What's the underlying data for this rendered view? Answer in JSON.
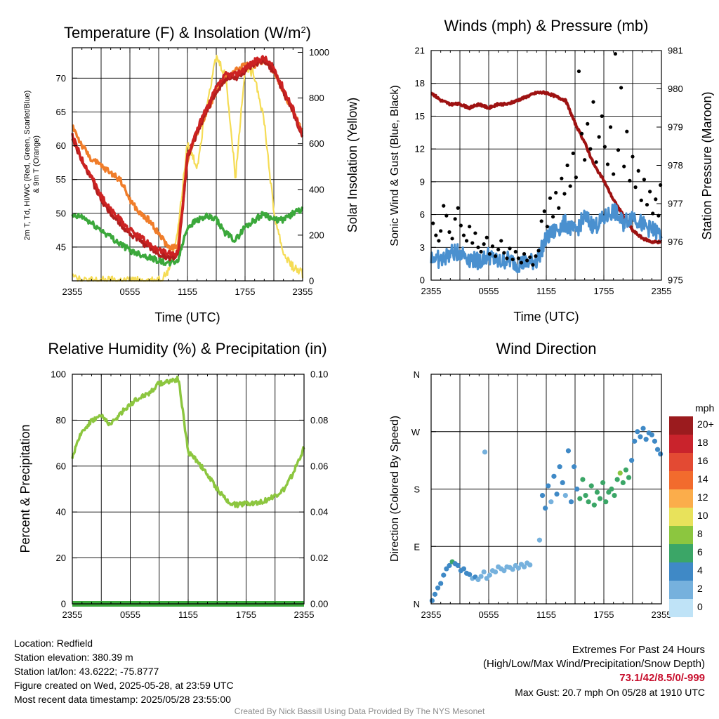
{
  "colors": {
    "temp_2m": "#cc2222",
    "dewpoint": "#3ba83b",
    "heat_index": "#b01d1d",
    "temp_9m": "#f07d2a",
    "insolation": "#f5dc55",
    "wind_speed": "#4a90cf",
    "wind_gust": "#000000",
    "pressure": "#9e1212",
    "rh": "#8cc63f",
    "precip": "#3ba83b"
  },
  "chart_data": [
    {
      "id": "temperature",
      "type": "line",
      "title": "Temperature (F) & Insolation (W/m²)",
      "xlabel": "Time (UTC)",
      "ylabel": "2m T, Td, HI/WC (Red, Green, Scarlet/Blue) & 9m T (Orange)",
      "ylabel_lines": [
        "2m T, Td, HI/WC (Red, Green, Scarlet/Blue)",
        "& 9m T (Orange)"
      ],
      "y2label": "Solar Insolation (Yellow)",
      "x_ticks": [
        "2355",
        "0555",
        "1155",
        "1755",
        "2355"
      ],
      "ylim": [
        40,
        74.5
      ],
      "y_ticks": [
        45,
        50,
        55,
        60,
        65,
        70
      ],
      "y2lim": [
        0,
        1020
      ],
      "y2_ticks": [
        0,
        200,
        400,
        600,
        800,
        1000
      ],
      "x_hours": [
        0,
        1,
        2,
        3,
        4,
        5,
        6,
        7,
        8,
        9,
        10,
        11,
        12,
        13,
        14,
        15,
        16,
        17,
        18,
        19,
        20,
        21,
        22,
        23,
        24
      ],
      "series": [
        {
          "axis": "y2",
          "color": "insolation",
          "values": [
            40,
            0,
            0,
            0,
            0,
            0,
            0,
            0,
            0,
            5,
            40,
            220,
            600,
            500,
            780,
            980,
            900,
            450,
            940,
            900,
            700,
            300,
            120,
            60,
            30
          ]
        },
        {
          "axis": "y",
          "color": "dewpoint",
          "values": [
            49.5,
            49.5,
            48.5,
            47.5,
            46.5,
            45.5,
            44.5,
            44,
            43.5,
            43,
            42.5,
            43,
            48,
            49,
            49.5,
            49,
            47,
            46,
            48,
            49,
            50,
            49,
            49,
            50,
            50.5
          ]
        },
        {
          "axis": "y",
          "color": "temp_9m",
          "values": [
            63,
            60,
            58,
            57,
            56,
            55,
            52,
            50,
            49,
            47,
            45,
            45,
            58,
            62,
            65,
            68,
            70,
            71,
            72,
            72,
            72.5,
            71,
            68,
            65,
            62
          ]
        },
        {
          "axis": "y",
          "color": "heat_index",
          "values": [
            61,
            58,
            55,
            52,
            50,
            48.5,
            47,
            46,
            45,
            44,
            43.5,
            43.5,
            58,
            62,
            65,
            68,
            70,
            70,
            71,
            72,
            72.5,
            71,
            68,
            65,
            61
          ]
        },
        {
          "axis": "y",
          "color": "temp_2m",
          "values": [
            61.5,
            58,
            55.5,
            52.5,
            50.5,
            49,
            47.5,
            46.5,
            45.5,
            44.5,
            44,
            44,
            58.5,
            62.5,
            65.5,
            68.5,
            70.5,
            70.5,
            71.5,
            72.5,
            73,
            71.5,
            68.5,
            65.5,
            61.5
          ]
        }
      ]
    },
    {
      "id": "winds",
      "type": "line",
      "title": "Winds (mph) & Pressure (mb)",
      "xlabel": "Time (UTC)",
      "ylabel": "Sonic Wind & Gust (Blue, Black)",
      "y2label": "Station Pressure (Maroon)",
      "x_ticks": [
        "2355",
        "0555",
        "1155",
        "1755",
        "2355"
      ],
      "ylim": [
        0,
        21
      ],
      "y_ticks": [
        0,
        3,
        6,
        9,
        12,
        15,
        18,
        21
      ],
      "y2lim": [
        975,
        981
      ],
      "y2_ticks": [
        975,
        976,
        977,
        978,
        979,
        980,
        981
      ],
      "x_hours": [
        0,
        1,
        2,
        3,
        4,
        5,
        6,
        7,
        8,
        9,
        10,
        11,
        12,
        13,
        14,
        15,
        16,
        17,
        18,
        19,
        20,
        21,
        22,
        23,
        24
      ],
      "series": [
        {
          "axis": "y2",
          "color": "pressure",
          "values": [
            979.9,
            979.7,
            979.6,
            979.6,
            979.5,
            979.6,
            979.5,
            979.6,
            979.6,
            979.7,
            979.8,
            979.9,
            979.9,
            979.8,
            979.7,
            979.1,
            978.6,
            978.0,
            977.6,
            977.1,
            976.7,
            976.3,
            976.1,
            976.0,
            976.0
          ]
        },
        {
          "axis": "y",
          "color": "wind_speed",
          "values": [
            2.2,
            1.8,
            2.4,
            2.6,
            2.0,
            1.7,
            2.3,
            1.6,
            1.9,
            1.5,
            1.6,
            1.8,
            3.8,
            4.6,
            5.2,
            4.4,
            5.8,
            4.9,
            5.6,
            6.4,
            5.2,
            6.0,
            5.1,
            4.6,
            4.2
          ]
        }
      ],
      "gust_points": [
        [
          0.2,
          5.2
        ],
        [
          0.5,
          4.1
        ],
        [
          0.8,
          3.6
        ],
        [
          1.0,
          4.5
        ],
        [
          1.3,
          6.8
        ],
        [
          1.6,
          5.9
        ],
        [
          1.9,
          4.4
        ],
        [
          2.2,
          3.8
        ],
        [
          2.5,
          5.6
        ],
        [
          2.8,
          6.6
        ],
        [
          3.1,
          5.0
        ],
        [
          3.4,
          4.1
        ],
        [
          3.7,
          3.6
        ],
        [
          4.0,
          4.9
        ],
        [
          4.3,
          3.4
        ],
        [
          4.6,
          4.3
        ],
        [
          4.9,
          3.0
        ],
        [
          5.2,
          2.6
        ],
        [
          5.5,
          3.3
        ],
        [
          5.8,
          3.9
        ],
        [
          6.1,
          2.4
        ],
        [
          6.4,
          3.1
        ],
        [
          6.7,
          2.2
        ],
        [
          7.0,
          2.8
        ],
        [
          7.3,
          3.6
        ],
        [
          7.6,
          2.5
        ],
        [
          7.9,
          2.0
        ],
        [
          8.2,
          2.9
        ],
        [
          8.5,
          1.9
        ],
        [
          8.8,
          2.6
        ],
        [
          9.1,
          2.0
        ],
        [
          9.4,
          1.6
        ],
        [
          9.7,
          2.4
        ],
        [
          10.0,
          1.8
        ],
        [
          10.3,
          2.1
        ],
        [
          10.6,
          1.4
        ],
        [
          10.9,
          2.2
        ],
        [
          11.2,
          2.7
        ],
        [
          11.5,
          5.4
        ],
        [
          11.8,
          6.3
        ],
        [
          12.1,
          4.9
        ],
        [
          12.4,
          7.5
        ],
        [
          12.7,
          5.8
        ],
        [
          13.0,
          8.0
        ],
        [
          13.3,
          6.6
        ],
        [
          13.6,
          9.3
        ],
        [
          13.9,
          7.9
        ],
        [
          14.2,
          10.5
        ],
        [
          14.5,
          8.6
        ],
        [
          14.8,
          11.6
        ],
        [
          15.1,
          9.4
        ],
        [
          15.4,
          19.1
        ],
        [
          15.7,
          13.4
        ],
        [
          16.0,
          11.0
        ],
        [
          16.3,
          14.3
        ],
        [
          16.6,
          12.0
        ],
        [
          16.9,
          16.3
        ],
        [
          17.2,
          10.8
        ],
        [
          17.5,
          13.1
        ],
        [
          17.8,
          15.0
        ],
        [
          18.1,
          12.2
        ],
        [
          18.4,
          10.6
        ],
        [
          18.7,
          14.0
        ],
        [
          19.0,
          9.7
        ],
        [
          19.2,
          20.7
        ],
        [
          19.5,
          11.9
        ],
        [
          19.8,
          17.6
        ],
        [
          20.1,
          10.4
        ],
        [
          20.4,
          13.6
        ],
        [
          20.7,
          9.1
        ],
        [
          21.0,
          11.3
        ],
        [
          21.3,
          8.5
        ],
        [
          21.6,
          10.0
        ],
        [
          21.9,
          7.3
        ],
        [
          22.2,
          9.2
        ],
        [
          22.5,
          6.9
        ],
        [
          22.8,
          8.1
        ],
        [
          23.1,
          6.1
        ],
        [
          23.4,
          7.4
        ],
        [
          23.7,
          5.9
        ],
        [
          23.9,
          8.7
        ]
      ]
    },
    {
      "id": "humidity",
      "type": "line",
      "title": "Relative Humidity (%) & Precipitation (in)",
      "xlabel": "",
      "ylabel": "Percent & Precipitation",
      "x_ticks": [
        "2355",
        "0555",
        "1155",
        "1755",
        "2355"
      ],
      "ylim": [
        0,
        100
      ],
      "y_ticks": [
        0,
        20,
        40,
        60,
        80,
        100
      ],
      "y2lim": [
        0,
        0.1
      ],
      "y2_ticks": [
        "0.00",
        "0.02",
        "0.04",
        "0.06",
        "0.08",
        "0.10"
      ],
      "x_hours": [
        0,
        1,
        2,
        3,
        4,
        5,
        6,
        7,
        8,
        9,
        10,
        11,
        12,
        13,
        14,
        15,
        16,
        17,
        18,
        19,
        20,
        21,
        22,
        23,
        24
      ],
      "series": [
        {
          "axis": "y",
          "color": "rh",
          "values": [
            64,
            75,
            80,
            82,
            78,
            83,
            87,
            90,
            92,
            96,
            97,
            98,
            66,
            62,
            56,
            50,
            45,
            43,
            44,
            44,
            45,
            47,
            50,
            58,
            68
          ]
        },
        {
          "axis": "y2",
          "color": "precip",
          "values": [
            0,
            0,
            0,
            0,
            0,
            0,
            0,
            0,
            0,
            0,
            0,
            0,
            0,
            0,
            0,
            0,
            0,
            0,
            0,
            0,
            0,
            0,
            0,
            0,
            0
          ]
        }
      ]
    },
    {
      "id": "direction",
      "type": "scatter",
      "title": "Wind Direction",
      "ylabel": "Direction (Colored By Speed)",
      "x_ticks": [
        "2355",
        "0555",
        "1155",
        "1755",
        "2355"
      ],
      "y_ticks": [
        "N",
        "E",
        "S",
        "W",
        "N"
      ],
      "ylim": [
        0,
        360
      ],
      "legend_title": "mph",
      "legend_labels": [
        "20+",
        "18",
        "16",
        "14",
        "12",
        "10",
        "8",
        "6",
        "4",
        "2",
        "0"
      ],
      "legend_colors": [
        "#9b1b1e",
        "#c9232c",
        "#e34a33",
        "#f26b2d",
        "#fbad4b",
        "#e8e25b",
        "#8cc63f",
        "#3ba667",
        "#3f89c6",
        "#76b1dd",
        "#bfe3f7"
      ],
      "points": [
        [
          0.1,
          5,
          4
        ],
        [
          0.4,
          15,
          4
        ],
        [
          0.7,
          25,
          3
        ],
        [
          1.0,
          32,
          3
        ],
        [
          1.3,
          45,
          4
        ],
        [
          1.6,
          55,
          4
        ],
        [
          1.9,
          60,
          4
        ],
        [
          2.2,
          66,
          5
        ],
        [
          2.5,
          63,
          4
        ],
        [
          2.8,
          60,
          3
        ],
        [
          3.1,
          52,
          4
        ],
        [
          3.4,
          55,
          3
        ],
        [
          3.7,
          48,
          4
        ],
        [
          4.0,
          46,
          3
        ],
        [
          4.3,
          40,
          2
        ],
        [
          4.6,
          42,
          3
        ],
        [
          4.9,
          38,
          2
        ],
        [
          5.2,
          43,
          1
        ],
        [
          5.5,
          50,
          1
        ],
        [
          5.6,
          238,
          1
        ],
        [
          5.8,
          40,
          1
        ],
        [
          6.1,
          45,
          1
        ],
        [
          6.4,
          52,
          1
        ],
        [
          6.7,
          50,
          1
        ],
        [
          7.0,
          58,
          2
        ],
        [
          7.3,
          55,
          1
        ],
        [
          7.6,
          52,
          1
        ],
        [
          7.9,
          58,
          1
        ],
        [
          8.2,
          57,
          2
        ],
        [
          8.5,
          54,
          1
        ],
        [
          8.8,
          60,
          1
        ],
        [
          9.1,
          56,
          1
        ],
        [
          9.4,
          62,
          1
        ],
        [
          9.7,
          58,
          1
        ],
        [
          10.0,
          64,
          1
        ],
        [
          10.3,
          61,
          1
        ],
        [
          11.3,
          100,
          2
        ],
        [
          11.6,
          170,
          3
        ],
        [
          11.9,
          150,
          3
        ],
        [
          12.2,
          185,
          3
        ],
        [
          12.5,
          160,
          2
        ],
        [
          12.8,
          200,
          3
        ],
        [
          13.1,
          172,
          3
        ],
        [
          13.4,
          215,
          4
        ],
        [
          13.7,
          190,
          3
        ],
        [
          14.0,
          170,
          2
        ],
        [
          14.3,
          240,
          3
        ],
        [
          14.6,
          160,
          3
        ],
        [
          14.9,
          215,
          4
        ],
        [
          15.2,
          180,
          4
        ],
        [
          15.5,
          165,
          5
        ],
        [
          15.8,
          195,
          6
        ],
        [
          16.1,
          170,
          6
        ],
        [
          16.4,
          160,
          5
        ],
        [
          16.7,
          185,
          6
        ],
        [
          17.0,
          155,
          6
        ],
        [
          17.3,
          175,
          5
        ],
        [
          17.6,
          165,
          6
        ],
        [
          17.9,
          190,
          6
        ],
        [
          18.2,
          160,
          6
        ],
        [
          18.5,
          175,
          5
        ],
        [
          18.8,
          180,
          6
        ],
        [
          19.1,
          170,
          6
        ],
        [
          19.4,
          195,
          6
        ],
        [
          19.7,
          205,
          7
        ],
        [
          20.0,
          190,
          6
        ],
        [
          20.3,
          210,
          6
        ],
        [
          20.6,
          198,
          6
        ],
        [
          20.9,
          225,
          4
        ],
        [
          21.2,
          255,
          4
        ],
        [
          21.5,
          270,
          4
        ],
        [
          21.8,
          262,
          4
        ],
        [
          22.1,
          275,
          4
        ],
        [
          22.4,
          258,
          4
        ],
        [
          22.7,
          268,
          4
        ],
        [
          23.0,
          265,
          4
        ],
        [
          23.3,
          255,
          4
        ],
        [
          23.6,
          242,
          4
        ],
        [
          23.9,
          235,
          4
        ]
      ]
    }
  ],
  "footer_left": {
    "location": "Location: Redfield",
    "elevation": "Station elevation: 380.39 m",
    "latlon": "Station lat/lon: 43.6222; -75.8777",
    "created": "Figure created on Wed, 2025-05-28, at 23:59 UTC",
    "recent": "Most recent data timestamp: 2025/05/28 23:55:00"
  },
  "footer_right": {
    "heading": "Extremes For Past 24 Hours",
    "subheading": "(High/Low/Max Wind/Precipitation/Snow Depth)",
    "values": "73.1/42/8.5/0/-999",
    "max_gust": "Max Gust: 20.7 mph On 05/28 at 1910 UTC"
  },
  "credit": "Created By Nick Bassill Using Data Provided By The NYS Mesonet"
}
